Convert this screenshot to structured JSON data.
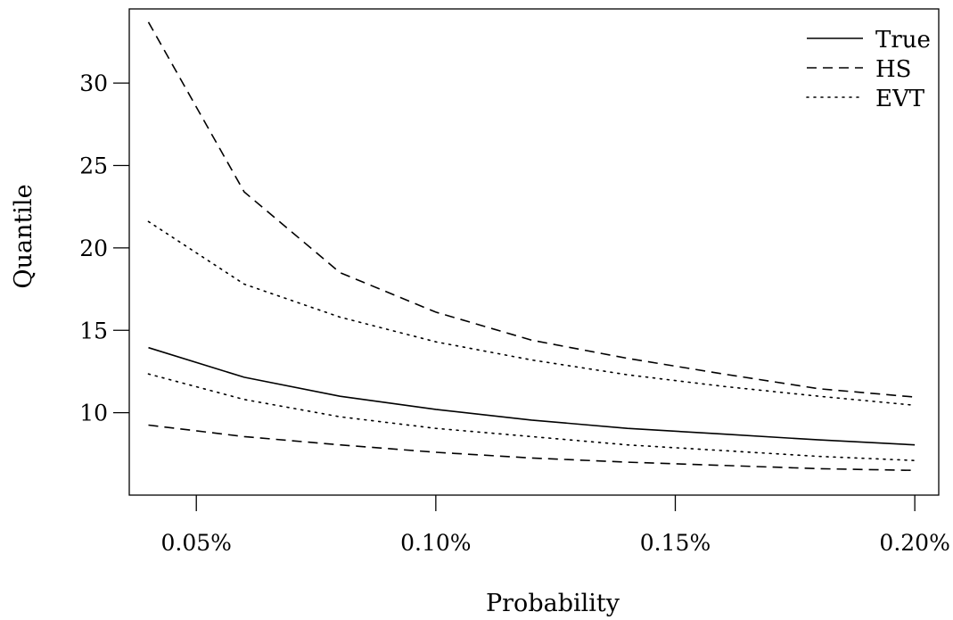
{
  "chart_data": {
    "type": "line",
    "title": "",
    "xlabel": "Probability",
    "ylabel": "Quantile",
    "xlim": [
      0.036,
      0.205
    ],
    "ylim": [
      5.0,
      34.5
    ],
    "grid": false,
    "legend_position": "top-right",
    "x_ticks": [
      {
        "value": 0.05,
        "label": "0.05%"
      },
      {
        "value": 0.1,
        "label": "0.10%"
      },
      {
        "value": 0.15,
        "label": "0.15%"
      },
      {
        "value": 0.2,
        "label": "0.20%"
      }
    ],
    "y_ticks": [
      {
        "value": 10,
        "label": "10"
      },
      {
        "value": 15,
        "label": "15"
      },
      {
        "value": 20,
        "label": "20"
      },
      {
        "value": 25,
        "label": "25"
      },
      {
        "value": 30,
        "label": "30"
      }
    ],
    "x": [
      0.04,
      0.06,
      0.08,
      0.1,
      0.12,
      0.14,
      0.16,
      0.18,
      0.2
    ],
    "series": [
      {
        "name": "True",
        "style": "solid",
        "legend": true,
        "values": [
          13.95,
          12.15,
          11.0,
          10.2,
          9.55,
          9.05,
          8.7,
          8.35,
          8.05
        ]
      },
      {
        "name": "HS",
        "style": "dashed",
        "legend": true,
        "values": [
          33.7,
          23.4,
          18.5,
          16.1,
          14.4,
          13.3,
          12.35,
          11.45,
          10.95
        ]
      },
      {
        "name": "EVT",
        "style": "dotted",
        "legend": true,
        "values": [
          21.6,
          17.8,
          15.8,
          14.3,
          13.2,
          12.3,
          11.6,
          11.0,
          10.45
        ]
      },
      {
        "name": "",
        "style": "dashed",
        "legend": false,
        "values": [
          9.25,
          8.55,
          8.05,
          7.6,
          7.25,
          7.0,
          6.8,
          6.6,
          6.5
        ]
      },
      {
        "name": "",
        "style": "dotted",
        "legend": false,
        "values": [
          12.35,
          10.8,
          9.75,
          9.05,
          8.55,
          8.05,
          7.7,
          7.35,
          7.1
        ]
      }
    ]
  }
}
